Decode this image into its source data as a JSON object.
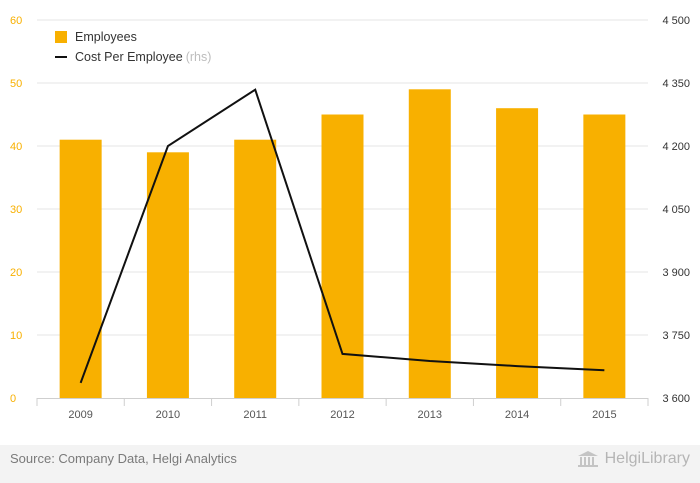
{
  "chart_data": {
    "type": "bar+line",
    "categories": [
      "2009",
      "2010",
      "2011",
      "2012",
      "2013",
      "2014",
      "2015"
    ],
    "series": [
      {
        "name": "Employees",
        "type": "bar",
        "axis": "left",
        "color": "#f8b000",
        "values": [
          41,
          39,
          41,
          45,
          49,
          46,
          45
        ]
      },
      {
        "name": "Cost Per Employee",
        "name_suffix": "(rhs)",
        "type": "line",
        "axis": "right",
        "color": "#111111",
        "values": [
          3636,
          4200,
          4334,
          3705,
          3688,
          3676,
          3666
        ]
      }
    ],
    "y_left": {
      "min": 0,
      "max": 60,
      "ticks": [
        "0",
        "10",
        "20",
        "30",
        "40",
        "50",
        "60"
      ]
    },
    "y_right": {
      "min": 3600,
      "max": 4500,
      "ticks": [
        "3 600",
        "3 750",
        "3 900",
        "4 050",
        "4 200",
        "4 350",
        "4 500"
      ]
    },
    "grid": true,
    "legend_position": "top-left"
  },
  "footer": {
    "source": "Source: Company Data, Helgi Analytics",
    "brand": "HelgiLibrary",
    "brand_icon": "library-building-icon"
  }
}
